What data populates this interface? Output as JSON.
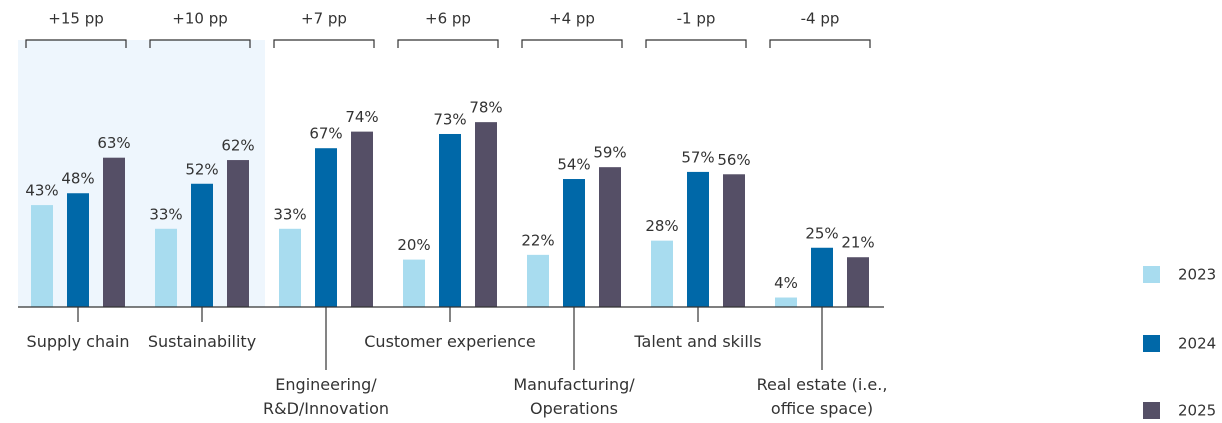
{
  "chart_data": {
    "type": "bar",
    "categories": [
      "Supply chain",
      "Sustainability",
      "Engineering/\nR&D/Innovation",
      "Customer experience",
      "Manufacturing/\nOperations",
      "Talent and skills",
      "Real estate (i.e.,\noffice space)"
    ],
    "annotations": [
      "+15 pp",
      "+10 pp",
      "+7 pp",
      "+6 pp",
      "+4 pp",
      "-1 pp",
      "-4 pp"
    ],
    "series": [
      {
        "name": "2023",
        "color": "#a8dcef",
        "values": [
          43,
          33,
          33,
          20,
          22,
          28,
          4
        ],
        "value_labels": [
          "43%",
          "33%",
          "33%",
          "20%",
          "22%",
          "28%",
          "4%"
        ]
      },
      {
        "name": "2024",
        "color": "#0068a8",
        "values": [
          48,
          52,
          67,
          73,
          54,
          57,
          25
        ],
        "value_labels": [
          "48%",
          "52%",
          "67%",
          "73%",
          "54%",
          "57%",
          "25%"
        ]
      },
      {
        "name": "2025",
        "color": "#554f66",
        "values": [
          63,
          62,
          74,
          78,
          59,
          56,
          21
        ],
        "value_labels": [
          "63%",
          "62%",
          "74%",
          "78%",
          "59%",
          "56%",
          "21%"
        ]
      }
    ],
    "ylim": [
      0,
      100
    ]
  }
}
